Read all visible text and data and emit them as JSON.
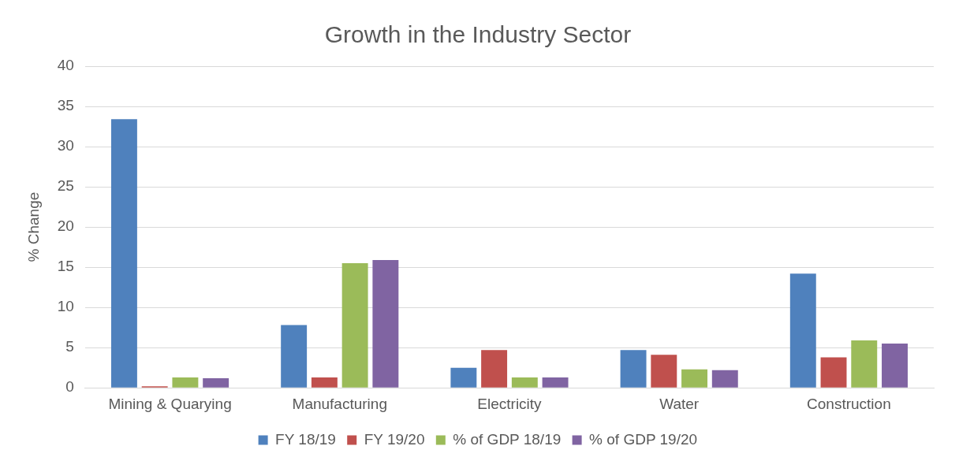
{
  "chart_data": {
    "type": "bar",
    "title": "Growth in the Industry Sector",
    "ylabel": "% Change",
    "categories": [
      "Mining & Quarying",
      "Manufacturing",
      "Electricity",
      "Water",
      "Construction"
    ],
    "series": [
      {
        "name": "FY 18/19",
        "color": "#4f81bd",
        "values": [
          33.4,
          7.8,
          2.5,
          4.7,
          14.2
        ]
      },
      {
        "name": "FY 19/20",
        "color": "#c0504d",
        "values": [
          0.2,
          1.3,
          4.7,
          4.1,
          3.8
        ]
      },
      {
        "name": "% of GDP 18/19",
        "color": "#9bbb59",
        "values": [
          1.3,
          15.5,
          1.3,
          2.3,
          5.9
        ]
      },
      {
        "name": "% of GDP 19/20",
        "color": "#8064a2",
        "values": [
          1.2,
          15.9,
          1.3,
          2.2,
          5.5
        ]
      }
    ],
    "ylim": [
      0,
      40
    ],
    "yticks": [
      0,
      5,
      10,
      15,
      20,
      25,
      30,
      35,
      40
    ],
    "grid": "y",
    "legend": "bottom"
  }
}
